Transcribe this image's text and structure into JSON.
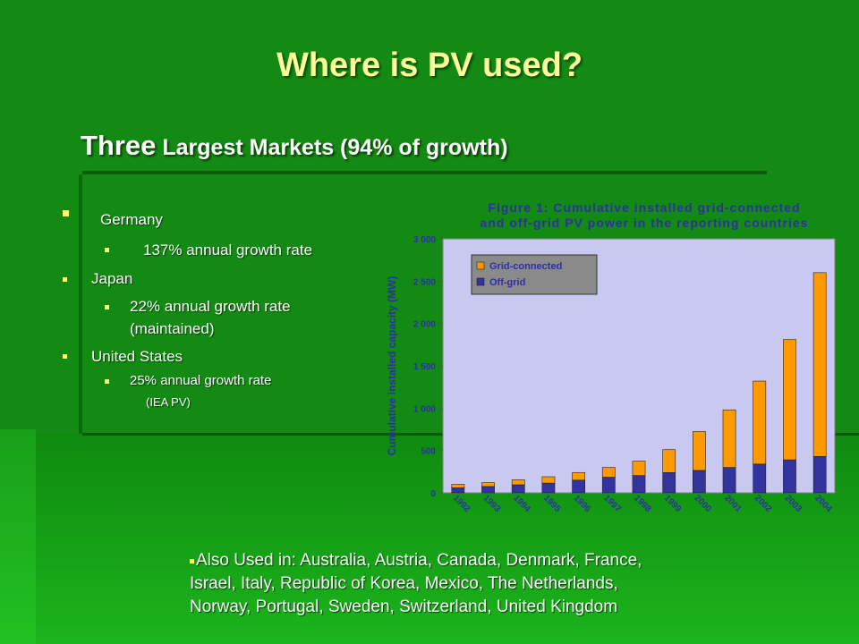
{
  "slide": {
    "title": "Where is PV used?",
    "subtitle_big": "Three",
    "subtitle_rest": " Largest Markets (94% of growth)",
    "bullets": {
      "germany": "Germany",
      "germany_sub": "137% annual growth rate",
      "japan": "Japan",
      "japan_sub1": "22% annual growth rate",
      "japan_sub2": "(maintained)",
      "us": "United States",
      "us_sub": "25% annual growth rate",
      "us_src": "(IEA PV)"
    },
    "also": {
      "lead": "Also Used in: ",
      "line1": "Australia, Austria, Canada, Denmark, France,",
      "line2": "Israel, Italy, Republic of Korea, Mexico, The Netherlands,",
      "line3": "Norway, Portugal, Sweden, Switzerland, United Kingdom"
    },
    "colors": {
      "bullet": "#ffff66",
      "title": "#ffff99",
      "background": "#138a13"
    }
  },
  "chart_data": {
    "type": "bar",
    "stacked": true,
    "title_line1": "Figure 1: Cumulative installed grid-connected",
    "title_line2": "and off-grid PV power in the reporting countries",
    "ylabel": "Cumulative installed capacity (MW)",
    "xlabel": "",
    "ylim": [
      0,
      3000
    ],
    "yticks": [
      0,
      500,
      1000,
      1500,
      2000,
      2500,
      3000
    ],
    "ytick_labels": [
      "0",
      "500",
      "1 000",
      "1 500",
      "2 000",
      "2 500",
      "3 000"
    ],
    "categories": [
      "1992",
      "1993",
      "1994",
      "1995",
      "1996",
      "1997",
      "1998",
      "1999",
      "2000",
      "2001",
      "2002",
      "2003",
      "2004"
    ],
    "series": [
      {
        "name": "Off-grid",
        "color": "#3333a0",
        "values": [
          60,
          75,
          95,
          115,
          150,
          185,
          205,
          240,
          265,
          300,
          340,
          390,
          430
        ]
      },
      {
        "name": "Grid-connected",
        "color": "#ff9900",
        "values": [
          40,
          45,
          60,
          75,
          90,
          115,
          170,
          270,
          460,
          680,
          980,
          1420,
          2170
        ]
      }
    ],
    "legend": "top-left",
    "plot_background": "#c8c8f0",
    "grid": false
  }
}
